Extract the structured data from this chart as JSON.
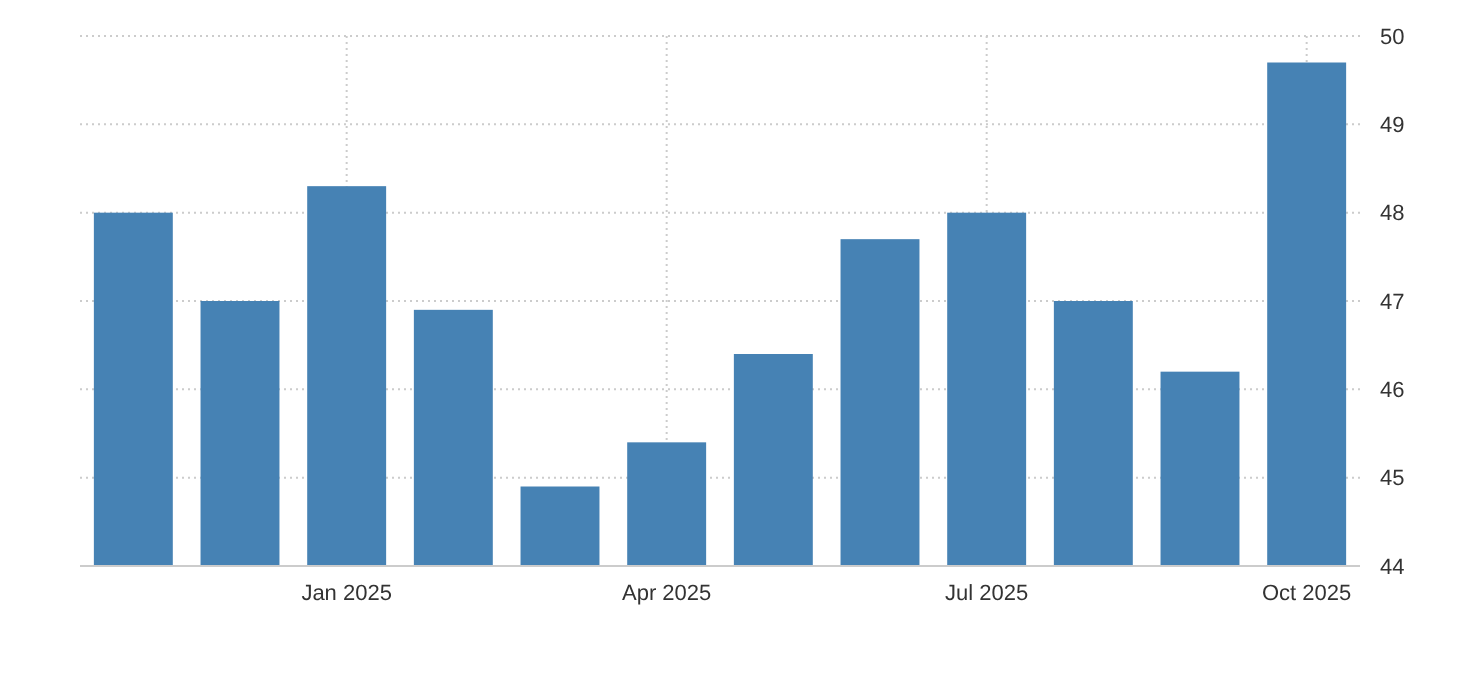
{
  "chart_data": {
    "type": "bar",
    "categories": [
      null,
      null,
      "Jan 2025",
      null,
      null,
      "Apr 2025",
      null,
      null,
      "Jul 2025",
      null,
      null,
      "Oct 2025"
    ],
    "values": [
      48.0,
      47.0,
      48.3,
      46.9,
      44.9,
      45.4,
      46.4,
      47.7,
      48.0,
      47.0,
      46.2,
      49.7
    ],
    "color": "#4682b4",
    "ylim": [
      44,
      50
    ],
    "yticks": [
      44,
      45,
      46,
      47,
      48,
      49,
      50
    ],
    "grid": true
  }
}
